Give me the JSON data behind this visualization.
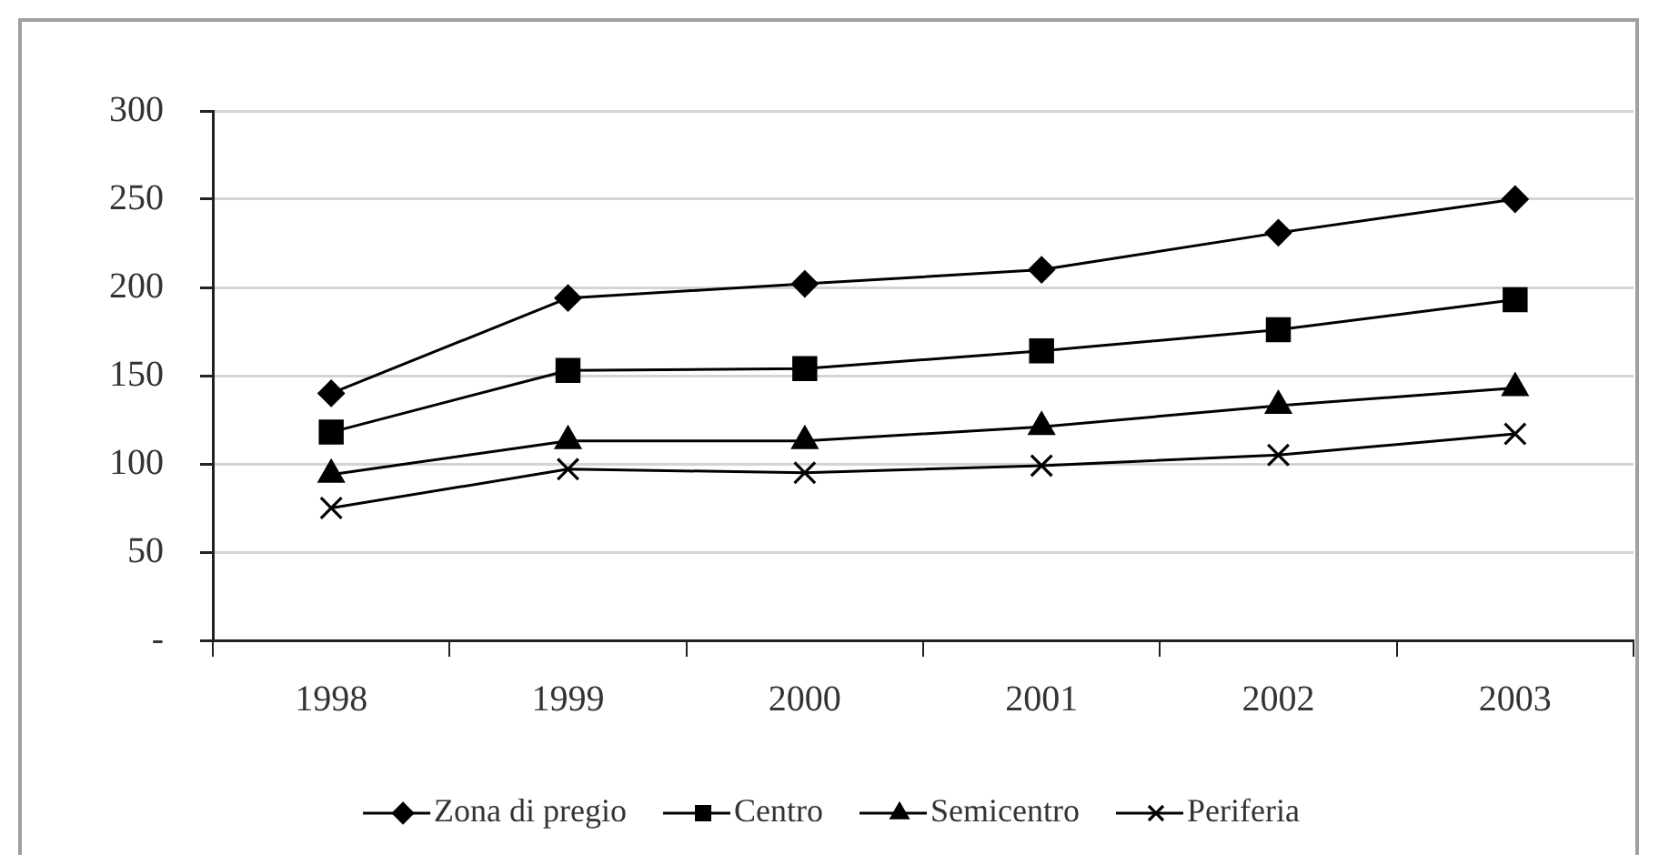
{
  "chart_data": {
    "type": "line",
    "categories": [
      "1998",
      "1999",
      "2000",
      "2001",
      "2002",
      "2003"
    ],
    "series": [
      {
        "name": "Zona di pregio",
        "color": "#000000",
        "marker": "diamond",
        "values": [
          140,
          194,
          202,
          210,
          231,
          250
        ]
      },
      {
        "name": "Centro",
        "color": "#000000",
        "marker": "square",
        "values": [
          118,
          153,
          154,
          164,
          176,
          193
        ]
      },
      {
        "name": "Semicentro",
        "color": "#000000",
        "marker": "triangle",
        "values": [
          94,
          113,
          113,
          121,
          133,
          143
        ]
      },
      {
        "name": "Periferia",
        "color": "#000000",
        "marker": "cross",
        "values": [
          75,
          97,
          95,
          99,
          105,
          117
        ]
      }
    ],
    "ylim": [
      0,
      300
    ],
    "yticks": [
      {
        "value": 0,
        "label": "-"
      },
      50,
      100,
      150,
      200,
      250,
      300
    ],
    "grid": "y",
    "legend": "bottom",
    "line_style": "solid"
  }
}
